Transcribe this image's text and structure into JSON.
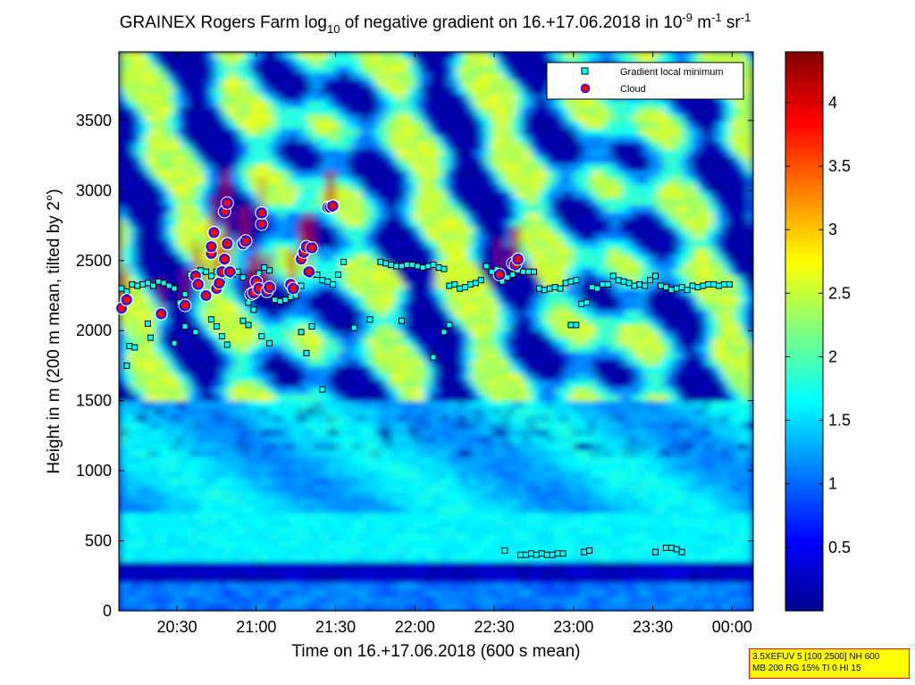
{
  "title": {
    "prefix": "GRAINEX Rogers Farm log",
    "sub": "10",
    "middle": " of negative gradient on 16.+17.06.2018 in 10",
    "sup1": "-9",
    "unit_m": " m",
    "sup2": "-1",
    "unit_sr": " sr",
    "sup3": "-1"
  },
  "colors": {
    "plot_background": "#00008f",
    "marker_square_fill": "#00ffff",
    "marker_edge": "#000000",
    "cloud_fill": "#ff0000",
    "cloud_edge": "#1010ff",
    "info_box_bg": "#ffff00",
    "info_box_border": "#ff0000",
    "colormap": "jet"
  },
  "legend": {
    "items": [
      {
        "label": "Gradient local minimum",
        "icon": "cyan-square-icon"
      },
      {
        "label": "Cloud",
        "icon": "red-circle-icon"
      }
    ]
  },
  "colorbar": {
    "min": 0,
    "max": 4.4,
    "ticks": [
      "4",
      "3.5",
      "3",
      "2.5",
      "2",
      "1.5",
      "1",
      "0.5"
    ]
  },
  "info_box": {
    "line1": "3.5XEFUV 5 [100 2500] NH 600",
    "line2": "MB 200 RG 15% TI 0 HI 15"
  },
  "chart_data": {
    "type": "heatmap",
    "xlabel": "Time on 16.+17.06.2018 (600 s mean)",
    "ylabel": "Height in m (200 m mean, tilted by 2°)",
    "xlim": [
      "20:08",
      "00:08"
    ],
    "ylim": [
      0,
      3990
    ],
    "x_tick_labels": [
      "20:30",
      "21:00",
      "21:30",
      "22:00",
      "22:30",
      "23:00",
      "23:30",
      "00:00"
    ],
    "y_tick_labels": [
      "0",
      "500",
      "1000",
      "1500",
      "2000",
      "2500",
      "3000",
      "3500"
    ],
    "y_ticks": [
      0,
      500,
      1000,
      1500,
      2000,
      2500,
      3000,
      3500
    ],
    "grid": false,
    "legend_position": "top-right",
    "z_label": "log10 of negative gradient",
    "z_range": [
      0,
      4.4
    ],
    "series": [
      {
        "name": "Gradient local minimum",
        "marker": "square",
        "points": [
          [
            "20:09",
            2300
          ],
          [
            "20:11",
            2280
          ],
          [
            "20:13",
            2330
          ],
          [
            "20:15",
            2320
          ],
          [
            "20:17",
            2330
          ],
          [
            "20:19",
            2340
          ],
          [
            "20:21",
            2320
          ],
          [
            "20:12",
            1890
          ],
          [
            "20:14",
            1880
          ],
          [
            "20:11",
            1750
          ],
          [
            "20:23",
            2350
          ],
          [
            "20:25",
            2340
          ],
          [
            "20:27",
            2320
          ],
          [
            "20:29",
            2300
          ],
          [
            "20:31",
            2200
          ],
          [
            "20:33",
            2260
          ],
          [
            "20:35",
            2400
          ],
          [
            "20:37",
            2380
          ],
          [
            "20:39",
            2430
          ],
          [
            "20:41",
            2420
          ],
          [
            "20:43",
            2390
          ],
          [
            "20:45",
            2420
          ],
          [
            "20:47",
            2360
          ],
          [
            "20:49",
            2430
          ],
          [
            "20:51",
            2400
          ],
          [
            "20:53",
            2420
          ],
          [
            "20:55",
            2380
          ],
          [
            "20:57",
            2200
          ],
          [
            "20:59",
            2150
          ],
          [
            "21:01",
            2410
          ],
          [
            "21:03",
            2450
          ],
          [
            "21:05",
            2430
          ],
          [
            "21:07",
            2220
          ],
          [
            "21:09",
            2210
          ],
          [
            "21:11",
            2220
          ],
          [
            "21:13",
            2240
          ],
          [
            "21:15",
            2250
          ],
          [
            "21:17",
            2320
          ],
          [
            "21:19",
            2420
          ],
          [
            "21:21",
            2400
          ],
          [
            "21:23",
            2400
          ],
          [
            "21:25",
            2360
          ],
          [
            "21:27",
            2350
          ],
          [
            "21:29",
            2330
          ],
          [
            "21:31",
            2400
          ],
          [
            "21:33",
            2490
          ],
          [
            "21:25",
            1580
          ],
          [
            "21:17",
            1990
          ],
          [
            "21:19",
            1840
          ],
          [
            "21:21",
            2030
          ],
          [
            "20:43",
            2080
          ],
          [
            "20:45",
            2030
          ],
          [
            "20:47",
            1960
          ],
          [
            "20:49",
            1900
          ],
          [
            "20:55",
            2070
          ],
          [
            "21:02",
            1960
          ],
          [
            "21:05",
            1910
          ],
          [
            "20:19",
            2050
          ],
          [
            "20:20",
            1950
          ],
          [
            "20:29",
            1910
          ],
          [
            "21:37",
            2020
          ],
          [
            "21:43",
            2080
          ],
          [
            "21:47",
            2490
          ],
          [
            "21:49",
            2480
          ],
          [
            "21:51",
            2470
          ],
          [
            "21:53",
            2460
          ],
          [
            "21:55",
            2460
          ],
          [
            "21:57",
            2470
          ],
          [
            "21:59",
            2470
          ],
          [
            "22:01",
            2460
          ],
          [
            "22:03",
            2450
          ],
          [
            "22:05",
            2460
          ],
          [
            "22:07",
            2470
          ],
          [
            "22:09",
            2450
          ],
          [
            "22:11",
            2440
          ],
          [
            "22:13",
            2320
          ],
          [
            "22:15",
            2330
          ],
          [
            "22:17",
            2300
          ],
          [
            "22:19",
            2310
          ],
          [
            "22:21",
            2330
          ],
          [
            "22:23",
            2340
          ],
          [
            "22:25",
            2360
          ],
          [
            "22:27",
            2460
          ],
          [
            "22:29",
            2420
          ],
          [
            "22:31",
            2440
          ],
          [
            "22:33",
            2350
          ],
          [
            "22:35",
            2380
          ],
          [
            "22:37",
            2400
          ],
          [
            "22:39",
            2430
          ],
          [
            "22:41",
            2420
          ],
          [
            "22:43",
            2420
          ],
          [
            "22:45",
            2420
          ],
          [
            "22:47",
            2300
          ],
          [
            "22:49",
            2290
          ],
          [
            "22:51",
            2300
          ],
          [
            "22:53",
            2310
          ],
          [
            "22:55",
            2300
          ],
          [
            "22:57",
            2340
          ],
          [
            "22:59",
            2350
          ],
          [
            "23:01",
            2360
          ],
          [
            "23:03",
            2190
          ],
          [
            "23:05",
            2200
          ],
          [
            "23:07",
            2310
          ],
          [
            "23:09",
            2300
          ],
          [
            "23:11",
            2330
          ],
          [
            "23:13",
            2330
          ],
          [
            "23:15",
            2390
          ],
          [
            "23:17",
            2360
          ],
          [
            "23:19",
            2350
          ],
          [
            "23:21",
            2340
          ],
          [
            "23:23",
            2320
          ],
          [
            "23:25",
            2330
          ],
          [
            "23:27",
            2320
          ],
          [
            "23:29",
            2360
          ],
          [
            "23:31",
            2390
          ],
          [
            "23:33",
            2320
          ],
          [
            "23:35",
            2310
          ],
          [
            "23:37",
            2290
          ],
          [
            "23:39",
            2300
          ],
          [
            "23:41",
            2310
          ],
          [
            "23:43",
            2290
          ],
          [
            "23:45",
            2320
          ],
          [
            "23:47",
            2310
          ],
          [
            "23:49",
            2320
          ],
          [
            "23:51",
            2330
          ],
          [
            "23:53",
            2330
          ],
          [
            "23:55",
            2320
          ],
          [
            "23:57",
            2330
          ],
          [
            "23:59",
            2330
          ],
          [
            "22:59",
            2040
          ],
          [
            "23:01",
            2040
          ],
          [
            "22:13",
            2040
          ],
          [
            "22:11",
            1990
          ],
          [
            "22:07",
            1810
          ],
          [
            "21:55",
            2070
          ],
          [
            "22:34",
            430
          ],
          [
            "22:40",
            400
          ],
          [
            "22:42",
            400
          ],
          [
            "22:44",
            410
          ],
          [
            "22:46",
            400
          ],
          [
            "22:48",
            410
          ],
          [
            "22:50",
            400
          ],
          [
            "22:52",
            400
          ],
          [
            "22:54",
            410
          ],
          [
            "22:56",
            410
          ],
          [
            "23:04",
            420
          ],
          [
            "23:06",
            430
          ],
          [
            "23:31",
            420
          ],
          [
            "23:35",
            450
          ],
          [
            "23:37",
            450
          ],
          [
            "23:39",
            440
          ],
          [
            "23:41",
            420
          ],
          [
            "20:57",
            2040
          ],
          [
            "20:33",
            2030
          ],
          [
            "20:37",
            1990
          ]
        ]
      },
      {
        "name": "Cloud",
        "marker": "circle",
        "points": [
          [
            "20:09",
            2160
          ],
          [
            "20:11",
            2220
          ],
          [
            "20:24",
            2120
          ],
          [
            "20:33",
            2180
          ],
          [
            "20:37",
            2390
          ],
          [
            "20:38",
            2330
          ],
          [
            "20:41",
            2250
          ],
          [
            "20:43",
            2550
          ],
          [
            "20:43",
            2600
          ],
          [
            "20:44",
            2700
          ],
          [
            "20:45",
            2300
          ],
          [
            "20:46",
            2340
          ],
          [
            "20:47",
            2420
          ],
          [
            "20:48",
            2510
          ],
          [
            "20:48",
            2850
          ],
          [
            "20:49",
            2910
          ],
          [
            "20:49",
            2620
          ],
          [
            "20:50",
            2420
          ],
          [
            "20:55",
            2620
          ],
          [
            "20:56",
            2640
          ],
          [
            "20:58",
            2260
          ],
          [
            "20:59",
            2270
          ],
          [
            "21:00",
            2350
          ],
          [
            "21:01",
            2300
          ],
          [
            "21:02",
            2760
          ],
          [
            "21:02",
            2840
          ],
          [
            "21:04",
            2280
          ],
          [
            "21:05",
            2310
          ],
          [
            "21:13",
            2330
          ],
          [
            "21:14",
            2300
          ],
          [
            "21:17",
            2510
          ],
          [
            "21:18",
            2560
          ],
          [
            "21:19",
            2600
          ],
          [
            "21:20",
            2420
          ],
          [
            "21:21",
            2590
          ],
          [
            "21:27",
            2880
          ],
          [
            "21:28",
            2880
          ],
          [
            "21:29",
            2890
          ],
          [
            "22:32",
            2400
          ],
          [
            "22:37",
            2480
          ],
          [
            "22:38",
            2470
          ],
          [
            "22:39",
            2510
          ]
        ]
      }
    ]
  }
}
